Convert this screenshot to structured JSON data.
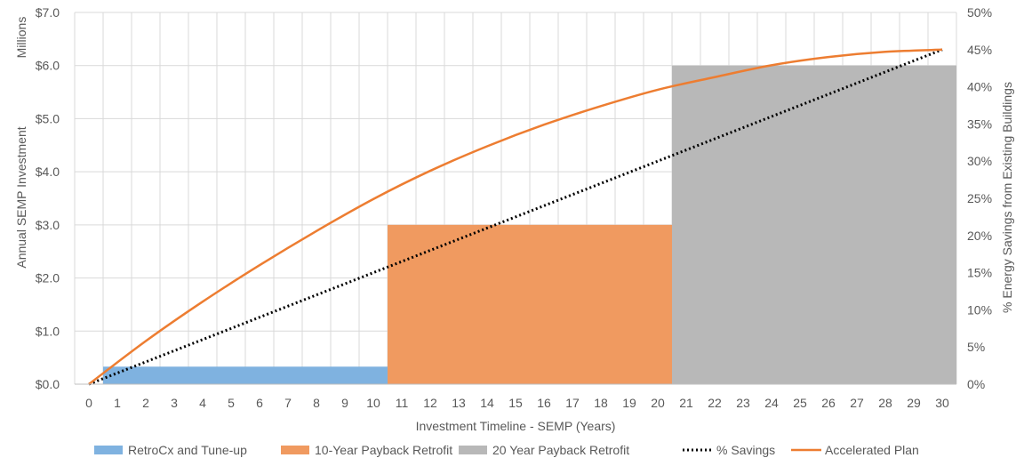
{
  "chart_data": {
    "type": "bar",
    "title": "",
    "xlabel": "Investment Timeline - SEMP (Years)",
    "ylabel": "Annual SEMP Investment",
    "ylabel_units": "Millions",
    "y2label": "% Energy Savings from Existing Buildings",
    "xlim": [
      0,
      30
    ],
    "ylim": [
      0,
      7
    ],
    "y2lim": [
      0,
      50
    ],
    "x_ticks": [
      0,
      1,
      2,
      3,
      4,
      5,
      6,
      7,
      8,
      9,
      10,
      11,
      12,
      13,
      14,
      15,
      16,
      17,
      18,
      19,
      20,
      21,
      22,
      23,
      24,
      25,
      26,
      27,
      28,
      29,
      30
    ],
    "y_ticks": [
      "$0.0",
      "$1.0",
      "$2.0",
      "$3.0",
      "$4.0",
      "$5.0",
      "$6.0",
      "$7.0"
    ],
    "y2_ticks": [
      "0%",
      "5%",
      "10%",
      "15%",
      "20%",
      "25%",
      "30%",
      "35%",
      "40%",
      "45%",
      "50%"
    ],
    "grid": true,
    "legend_position": "bottom",
    "bars": [
      {
        "name": "RetroCx and Tune-up",
        "color": "#7fb2e0",
        "x_start": 0.5,
        "x_end": 10.5,
        "value": 0.33
      },
      {
        "name": "10-Year Payback Retrofit",
        "color": "#f09a60",
        "x_start": 10.5,
        "x_end": 20.5,
        "value": 3.0
      },
      {
        "name": "20 Year Payback Retrofit",
        "color": "#b8b8b8",
        "x_start": 20.5,
        "x_end": 30.5,
        "value": 6.0
      }
    ],
    "lines": [
      {
        "name": "% Savings",
        "axis": "y2",
        "color": "#000000",
        "style": "dotted",
        "x": [
          0,
          30
        ],
        "values": [
          0,
          45
        ]
      },
      {
        "name": "Accelerated Plan",
        "axis": "y2",
        "color": "#ed7d31",
        "style": "solid",
        "x": [
          0,
          2,
          4,
          6,
          8,
          10,
          12,
          14,
          16,
          18,
          20,
          22,
          24,
          26,
          28,
          30
        ],
        "values": [
          0,
          5.8,
          11.1,
          16.0,
          20.6,
          24.9,
          28.7,
          32.0,
          34.9,
          37.4,
          39.6,
          41.3,
          42.9,
          44.0,
          44.7,
          45.0
        ]
      }
    ]
  }
}
